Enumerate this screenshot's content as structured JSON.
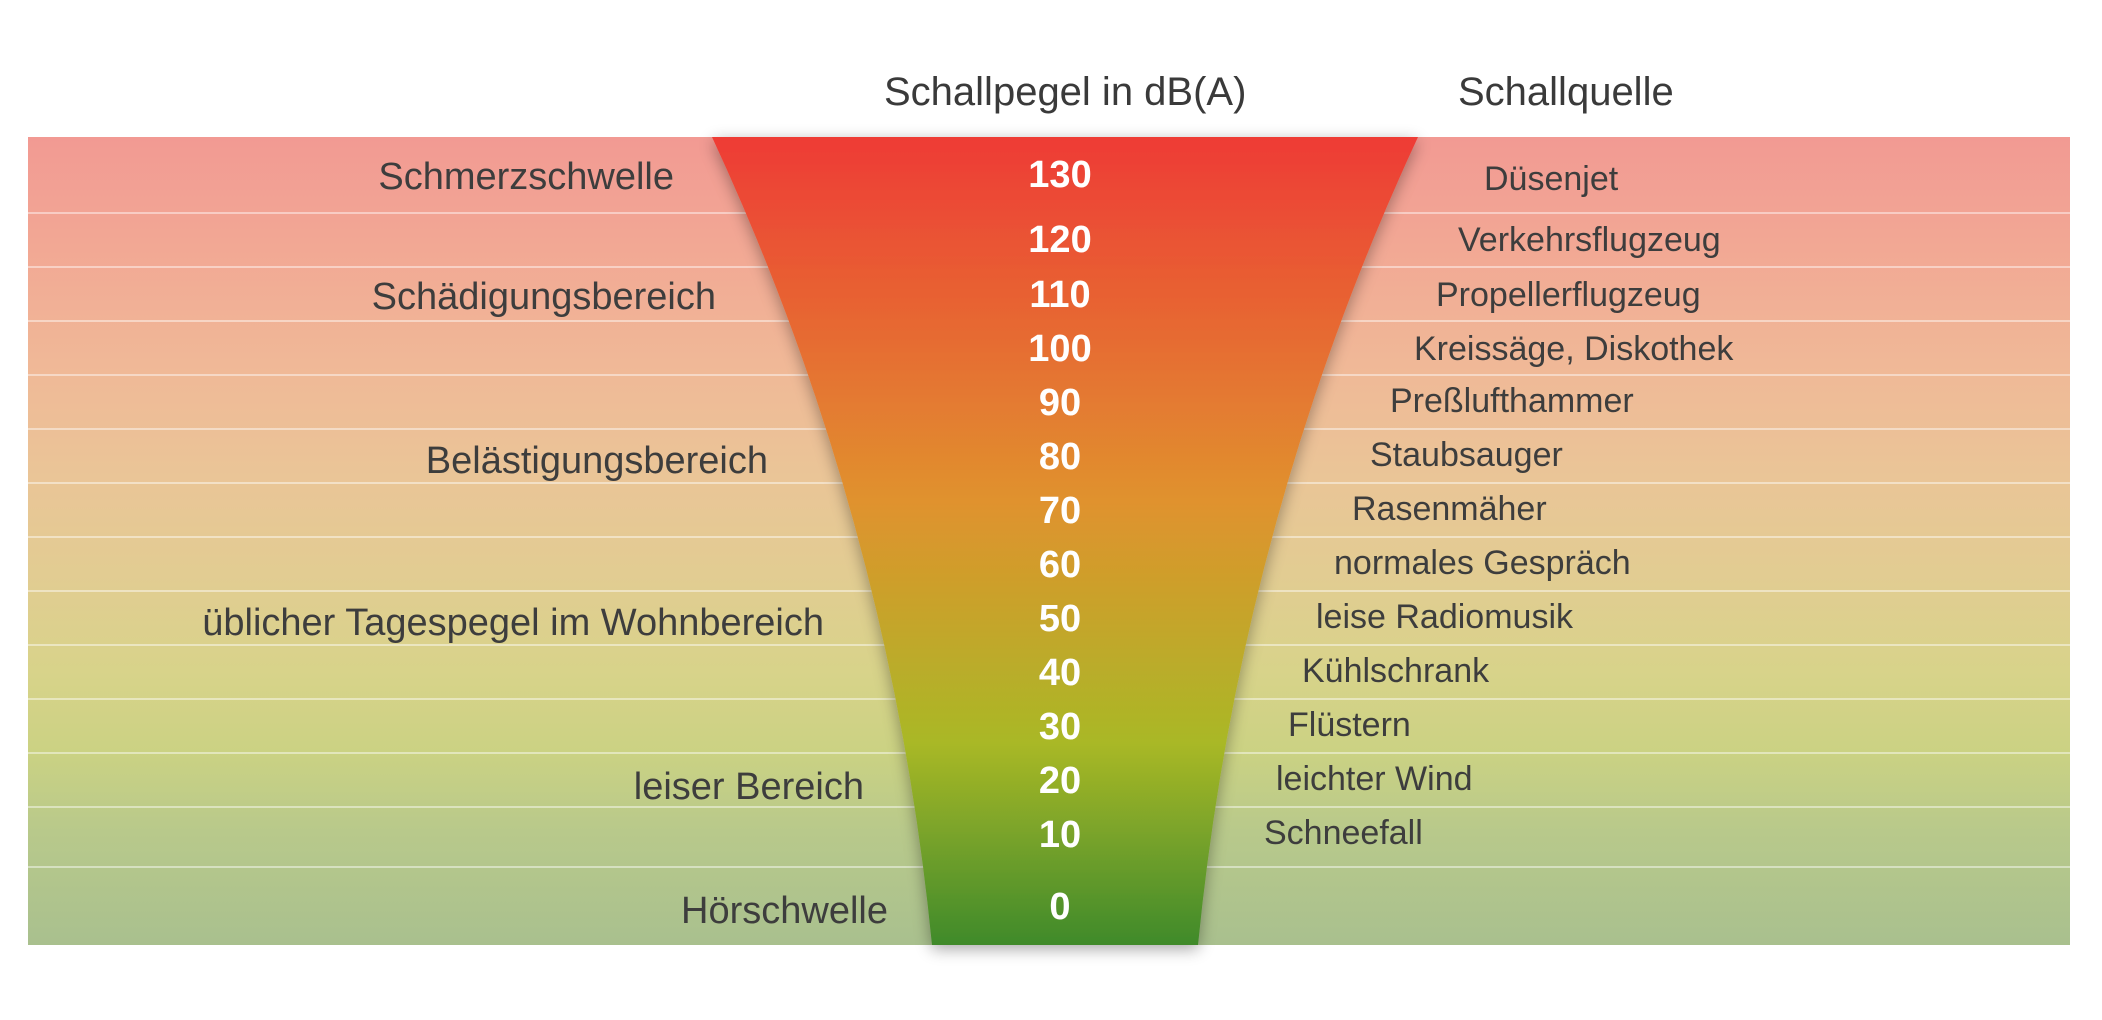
{
  "headers": {
    "level": "Schallpegel in dB(A)",
    "source": "Schallquelle"
  },
  "zones": [
    {
      "label": "Schmerzschwelle"
    },
    {
      "label": "Schädigungsbereich"
    },
    {
      "label": "Belästigungsbereich"
    },
    {
      "label": "üblicher Tagespegel im Wohnbereich"
    },
    {
      "label": "leiser Bereich"
    },
    {
      "label": "Hörschwelle"
    }
  ],
  "levels": [
    {
      "db": "130",
      "source": "Düsenjet"
    },
    {
      "db": "120",
      "source": "Verkehrsflugzeug"
    },
    {
      "db": "110",
      "source": "Propellerflugzeug"
    },
    {
      "db": "100",
      "source": "Kreissäge, Diskothek"
    },
    {
      "db": "90",
      "source": "Preßlufthammer"
    },
    {
      "db": "80",
      "source": "Staubsauger"
    },
    {
      "db": "70",
      "source": "Rasenmäher"
    },
    {
      "db": "60",
      "source": "normales Gespräch"
    },
    {
      "db": "50",
      "source": "leise Radiomusik"
    },
    {
      "db": "40",
      "source": "Kühlschrank"
    },
    {
      "db": "30",
      "source": "Flüstern"
    },
    {
      "db": "20",
      "source": "leichter Wind"
    },
    {
      "db": "10",
      "source": "Schneefall"
    },
    {
      "db": "0",
      "source": ""
    }
  ],
  "colors": {
    "funnel_top": "#ee3b36",
    "funnel_mid": "#e0922e",
    "funnel_lower": "#a9b827",
    "funnel_bottom": "#3f8a2c"
  }
}
